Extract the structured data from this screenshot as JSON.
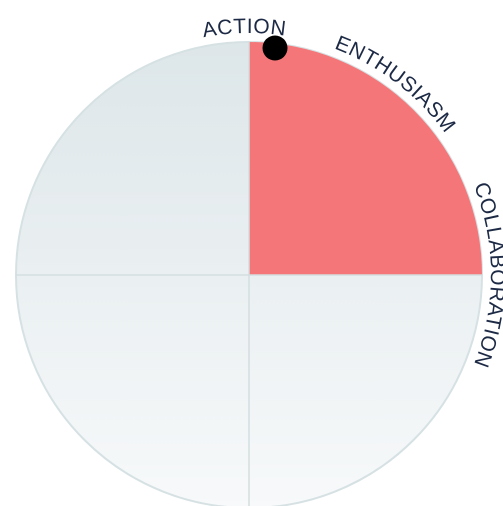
{
  "wheel": {
    "labels": [
      "ACTION",
      "ENTHUSIASM",
      "COLLABORATION"
    ]
  }
}
